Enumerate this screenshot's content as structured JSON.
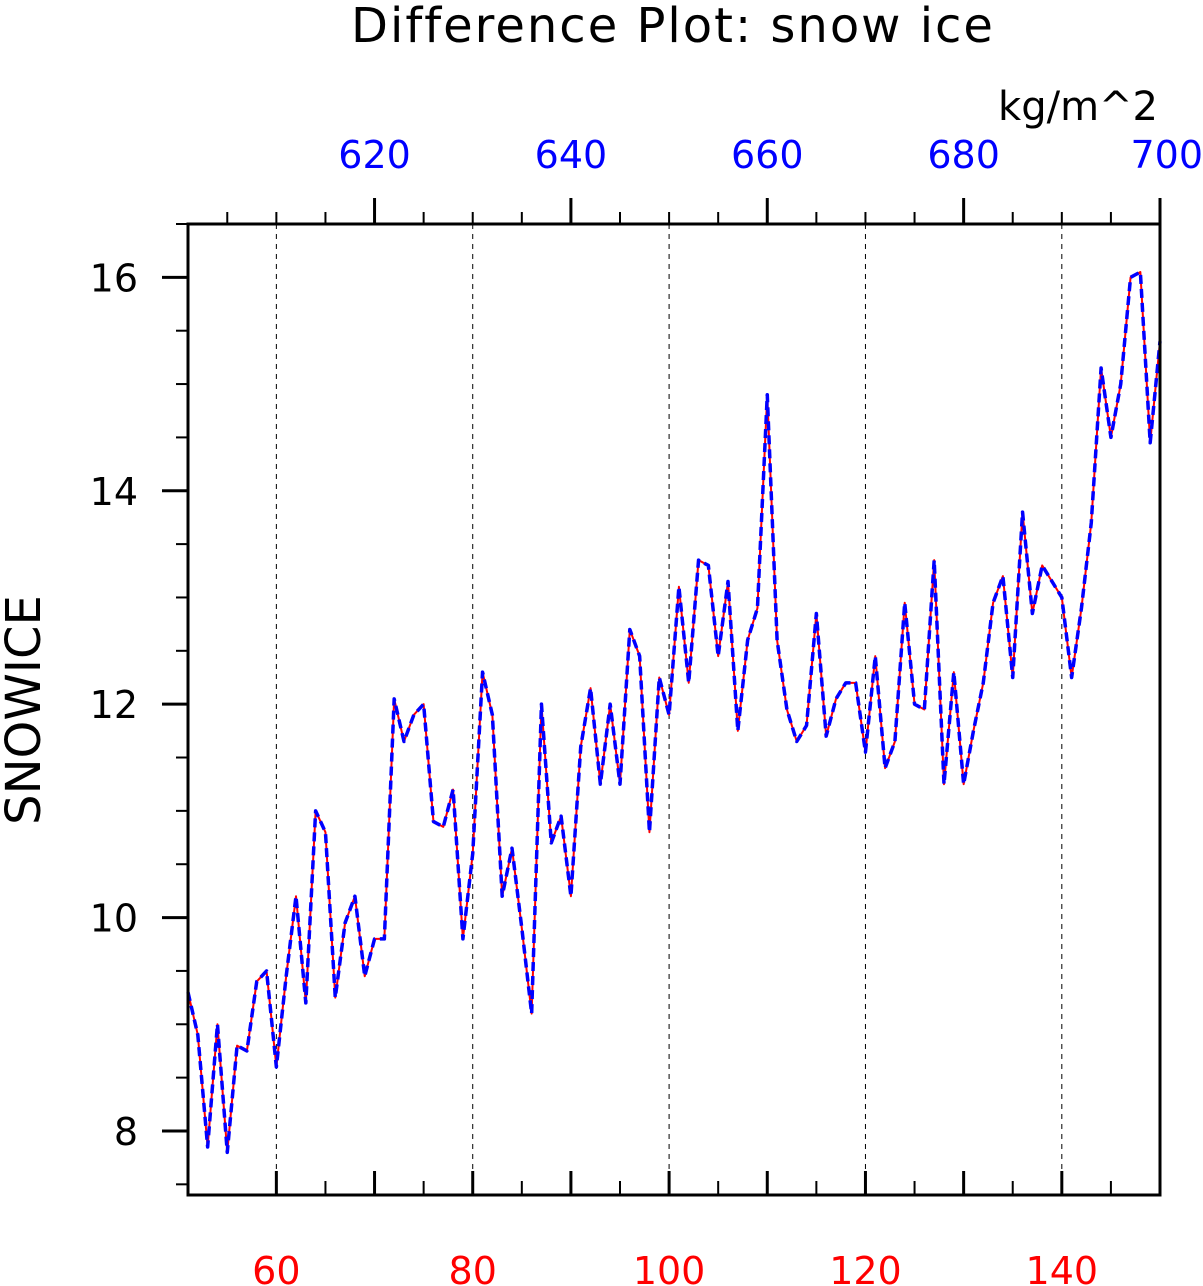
{
  "chart_data": {
    "type": "line",
    "title": "Difference Plot: snow ice",
    "units_label": "kg/m^2",
    "ylabel": "SNOWICE",
    "xlabel": "",
    "xlim": [
      51,
      150
    ],
    "ylim": [
      7.4,
      16.5
    ],
    "x_ticks": [
      60,
      80,
      100,
      120,
      140
    ],
    "x_tick_labels": [
      "60",
      "80",
      "100",
      "120",
      "140"
    ],
    "top_axis": {
      "xlim": [
        601,
        700
      ],
      "ticks": [
        620,
        640,
        660,
        680,
        700
      ],
      "tick_labels": [
        "620",
        "640",
        "660",
        "680",
        "700"
      ]
    },
    "y_ticks": [
      8,
      10,
      12,
      14,
      16
    ],
    "y_tick_labels": [
      "8",
      "10",
      "12",
      "14",
      "16"
    ],
    "grid": "vertical dashed",
    "x_start": 51,
    "x_step": 1,
    "series": [
      {
        "color": "#ff0000",
        "style": "solid",
        "values": [
          9.3,
          8.9,
          7.85,
          9.0,
          7.8,
          8.8,
          8.75,
          9.4,
          9.5,
          8.6,
          9.45,
          10.2,
          9.2,
          11.0,
          10.8,
          9.25,
          9.95,
          10.2,
          9.45,
          9.8,
          9.8,
          12.05,
          11.65,
          11.9,
          12.0,
          10.9,
          10.85,
          11.2,
          9.8,
          10.6,
          12.3,
          11.9,
          10.2,
          10.65,
          9.9,
          9.1,
          12.0,
          10.7,
          10.95,
          10.2,
          11.6,
          12.15,
          11.25,
          12.0,
          11.25,
          12.7,
          12.45,
          10.8,
          12.25,
          11.9,
          13.1,
          12.2,
          13.35,
          13.3,
          12.45,
          13.15,
          11.75,
          12.6,
          12.9,
          14.9,
          12.6,
          11.95,
          11.65,
          11.8,
          12.85,
          11.7,
          12.05,
          12.2,
          12.2,
          11.55,
          12.45,
          11.4,
          11.65,
          12.95,
          12.0,
          11.95,
          13.35,
          11.25,
          12.3,
          11.25,
          11.75,
          12.2,
          12.95,
          13.2,
          12.25,
          13.8,
          12.85,
          13.3,
          13.15,
          13.0,
          12.25,
          12.9,
          13.7,
          15.15,
          14.5,
          15.0,
          16.0,
          16.05,
          14.45,
          15.4
        ]
      },
      {
        "color": "#0000ff",
        "style": "dashed",
        "values": [
          9.3,
          8.9,
          7.85,
          9.0,
          7.8,
          8.8,
          8.75,
          9.4,
          9.5,
          8.6,
          9.45,
          10.2,
          9.2,
          11.0,
          10.8,
          9.25,
          9.95,
          10.2,
          9.45,
          9.8,
          9.8,
          12.05,
          11.65,
          11.9,
          12.0,
          10.9,
          10.85,
          11.2,
          9.8,
          10.6,
          12.3,
          11.9,
          10.2,
          10.65,
          9.9,
          9.1,
          12.0,
          10.7,
          10.95,
          10.2,
          11.6,
          12.15,
          11.25,
          12.0,
          11.25,
          12.7,
          12.45,
          10.8,
          12.25,
          11.9,
          13.1,
          12.2,
          13.35,
          13.3,
          12.45,
          13.15,
          11.75,
          12.6,
          12.9,
          14.9,
          12.6,
          11.95,
          11.65,
          11.8,
          12.85,
          11.7,
          12.05,
          12.2,
          12.2,
          11.55,
          12.45,
          11.4,
          11.65,
          12.95,
          12.0,
          11.95,
          13.35,
          11.25,
          12.3,
          11.25,
          11.75,
          12.2,
          12.95,
          13.2,
          12.25,
          13.8,
          12.85,
          13.3,
          13.15,
          13.0,
          12.25,
          12.9,
          13.7,
          15.15,
          14.5,
          15.0,
          16.0,
          16.05,
          14.45,
          15.4
        ]
      }
    ]
  }
}
